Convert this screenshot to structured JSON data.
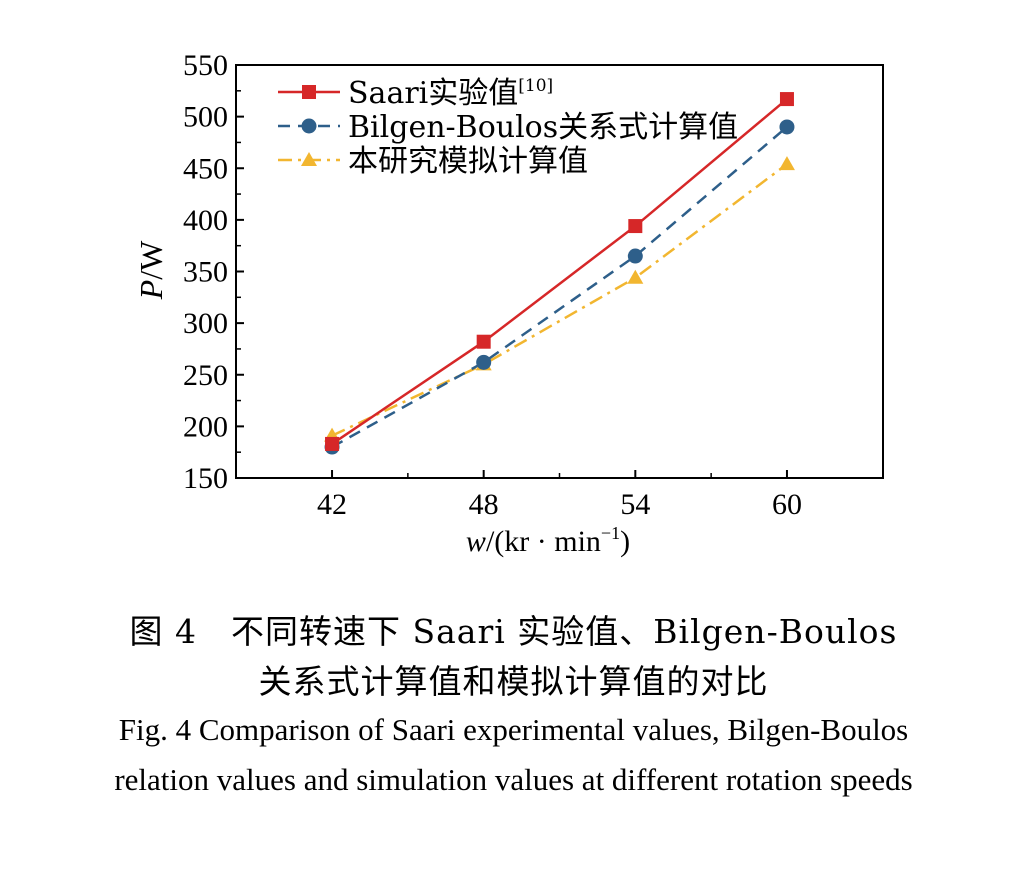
{
  "chart_data": {
    "type": "line",
    "title": "",
    "xlabel_var": "w",
    "xlabel_rest": "/(kr · min",
    "xlabel_sup": "−1",
    "xlabel_close": ")",
    "ylabel_var": "P",
    "ylabel_rest": "/W",
    "x": [
      42,
      48,
      54,
      60
    ],
    "x_ticks": [
      "42",
      "48",
      "54",
      "60"
    ],
    "xlim": [
      38.2,
      63.8
    ],
    "ylim": [
      150,
      550
    ],
    "y_ticks": [
      150,
      200,
      250,
      300,
      350,
      400,
      450,
      500,
      550
    ],
    "grid": false,
    "legend_position": "top-left",
    "series": [
      {
        "name": "Saari实验值",
        "name_sup": "[10]",
        "values": [
          183,
          282,
          394,
          517
        ],
        "color": "#d62728",
        "marker": "square",
        "line_style": "solid"
      },
      {
        "name": "Bilgen-Boulos关系式计算值",
        "name_sup": "",
        "values": [
          180,
          262,
          365,
          490
        ],
        "color": "#2e5f8a",
        "marker": "circle",
        "line_style": "dashed"
      },
      {
        "name": "本研究模拟计算值",
        "name_sup": "",
        "values": [
          191,
          260,
          344,
          454
        ],
        "color": "#f2b630",
        "marker": "triangle",
        "line_style": "dashdot"
      }
    ]
  },
  "caption": {
    "cn_line1": "图 4　不同转速下 Saari 实验值、Bilgen-Boulos",
    "cn_line2": "关系式计算值和模拟计算值的对比",
    "en_line1": "Fig. 4  Comparison of Saari experimental values, Bilgen-Boulos",
    "en_line2": "relation values and simulation values at different rotation speeds"
  }
}
